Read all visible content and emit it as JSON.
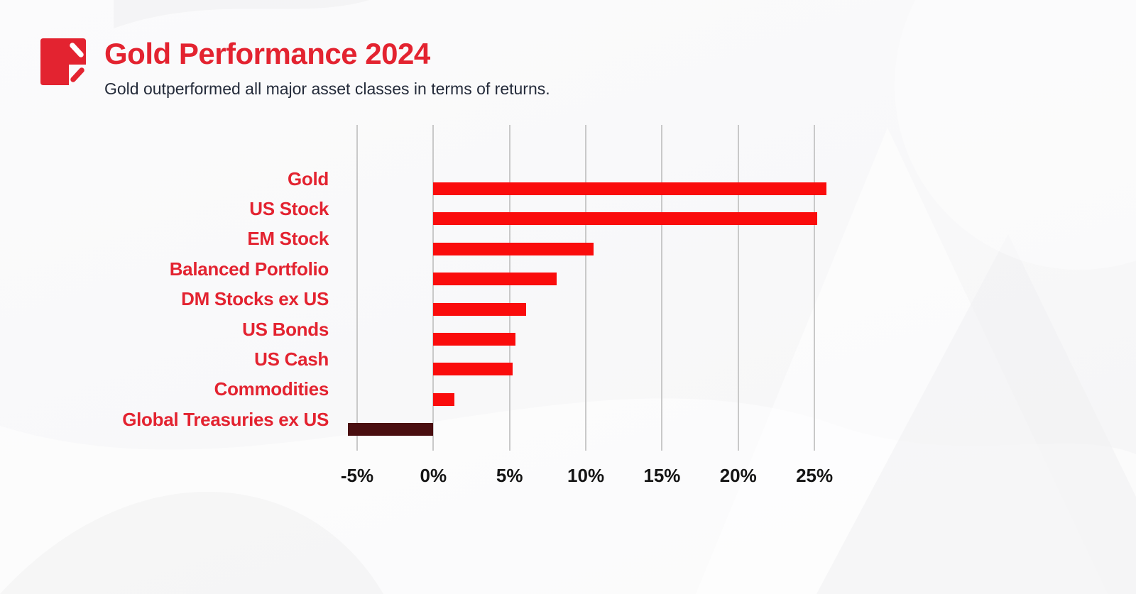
{
  "header": {
    "title": "Gold Performance 2024",
    "subtitle": "Gold outperformed all major asset classes in terms of returns.",
    "logo_icon": "pen-note-logo-icon"
  },
  "colors": {
    "accent_red": "#e32330",
    "bar_positive": "#fa0c0c",
    "bar_negative": "#4a0e10",
    "axis_text": "#141414",
    "subtitle_text": "#242b3a",
    "gridline": "#c9c9c9",
    "background": "#fafafa"
  },
  "chart_data": {
    "type": "bar",
    "orientation": "horizontal",
    "title": "Gold Performance 2024",
    "categories": [
      "Gold",
      "US Stock",
      "EM Stock",
      "Balanced Portfolio",
      "DM Stocks ex US",
      "US Bonds",
      "US Cash",
      "Commodities",
      "Global Treasuries ex US"
    ],
    "values": [
      25.8,
      25.2,
      10.5,
      8.1,
      6.1,
      5.4,
      5.2,
      1.4,
      -5.6
    ],
    "unit": "%",
    "xlabel": "",
    "ylabel": "",
    "xlim": [
      -5,
      25
    ],
    "x_ticks": [
      -5,
      0,
      5,
      10,
      15,
      20,
      25
    ],
    "x_tick_labels": [
      "-5%",
      "0%",
      "5%",
      "10%",
      "15%",
      "20%",
      "25%"
    ],
    "grid": "vertical",
    "legend": false
  }
}
